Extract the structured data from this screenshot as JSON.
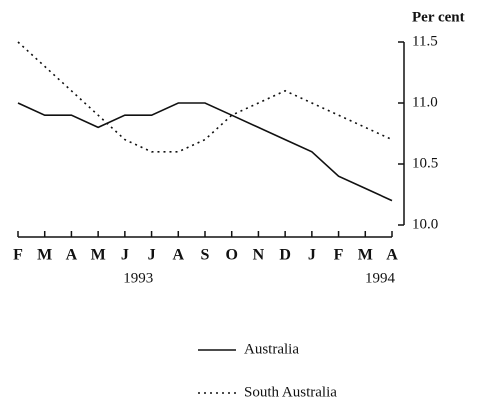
{
  "chart_data": {
    "type": "line",
    "y_axis_label": "Per cent",
    "categories": [
      "F",
      "M",
      "A",
      "M",
      "J",
      "J",
      "A",
      "S",
      "O",
      "N",
      "D",
      "J",
      "F",
      "M",
      "A"
    ],
    "year_labels": [
      "1993",
      "1994"
    ],
    "series": [
      {
        "name": "Australia",
        "color": "#111111",
        "style": "solid",
        "values": [
          11.0,
          10.9,
          10.9,
          10.8,
          10.9,
          10.9,
          11.0,
          11.0,
          10.9,
          10.8,
          10.7,
          10.6,
          10.4,
          10.3,
          10.2
        ]
      },
      {
        "name": "South Australia",
        "color": "#111111",
        "style": "dotted",
        "values": [
          11.5,
          11.3,
          11.1,
          10.9,
          10.7,
          10.6,
          10.6,
          10.7,
          10.9,
          11.0,
          11.1,
          11.0,
          10.9,
          10.8,
          10.7
        ]
      }
    ],
    "ylim": [
      10.0,
      11.5
    ],
    "yticks": [
      {
        "value": 10.0,
        "label": "10.0"
      },
      10.5,
      {
        "value": 11.0,
        "label": "11.0"
      },
      11.5
    ],
    "y_axis_side": "right",
    "grid": false,
    "legend": "bottom"
  }
}
